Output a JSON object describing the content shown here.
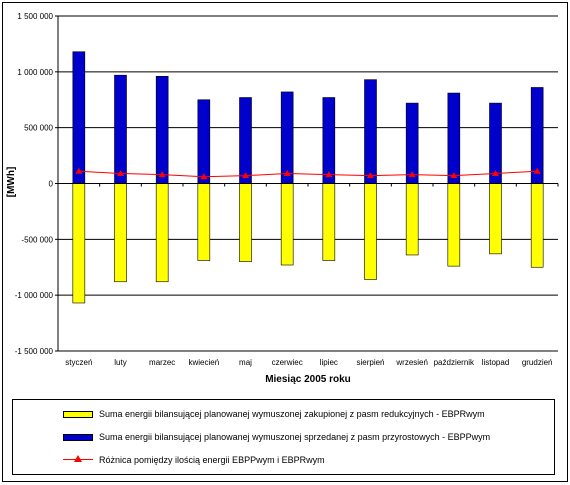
{
  "chart_data": {
    "type": "bar",
    "title": "",
    "xlabel": "Miesiąc 2005 roku",
    "ylabel": "[MWh]",
    "ylim": [
      -1500000,
      1500000
    ],
    "yticks": [
      1500000,
      1000000,
      500000,
      0,
      -500000,
      -1000000,
      -1500000
    ],
    "ytick_labels": [
      "1 500 000",
      "1 000 000",
      "500 000",
      "0",
      "-500 000",
      "-1 000 000",
      "-1 500 000"
    ],
    "categories": [
      "styczeń",
      "luty",
      "marzec",
      "kwiecień",
      "maj",
      "czerwiec",
      "lipiec",
      "sierpień",
      "wrzesień",
      "październik",
      "listopad",
      "grudzień"
    ],
    "grid": true,
    "legend_position": "bottom",
    "series": [
      {
        "name": "Suma energii bilansującej planowanej wymuszonej zakupionej z pasm redukcyjnych - EBPRwym",
        "type": "bar",
        "color": "#ffff00",
        "values": [
          -1070000,
          -880000,
          -880000,
          -690000,
          -700000,
          -730000,
          -690000,
          -860000,
          -640000,
          -740000,
          -630000,
          -750000
        ]
      },
      {
        "name": "Suma energii bilansującej planowanej wymuszonej sprzedanej z pasm przyrostowych - EBPPwym",
        "type": "bar",
        "color": "#0000cc",
        "values": [
          1180000,
          970000,
          960000,
          750000,
          770000,
          820000,
          770000,
          930000,
          720000,
          810000,
          720000,
          860000
        ]
      },
      {
        "name": "Różnica pomiędzy ilością energii EBPPwym i EBPRwym",
        "type": "line",
        "color": "#ff0000",
        "marker": "triangle",
        "values": [
          110000,
          90000,
          80000,
          60000,
          70000,
          90000,
          80000,
          70000,
          80000,
          70000,
          90000,
          110000
        ]
      }
    ]
  }
}
